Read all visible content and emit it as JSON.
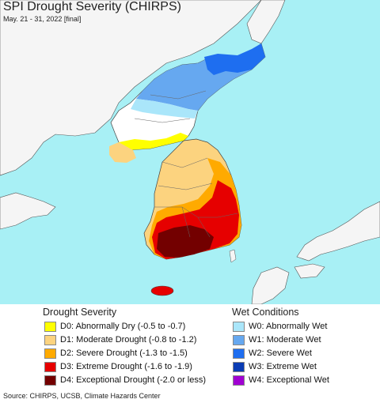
{
  "header": {
    "title": "SPI Drought Severity (CHIRPS)",
    "subtitle": "May. 21 - 31, 2022 [final]"
  },
  "colors": {
    "ocean": "#a8f0f5",
    "land_other": "#f5f5f5",
    "normal": "#ffffff",
    "border": "#444444"
  },
  "legend": {
    "drought": {
      "title": "Drought Severity",
      "items": [
        {
          "label": "D0: Abnormally Dry (-0.5 to -0.7)",
          "color": "#ffff00"
        },
        {
          "label": "D1: Moderate Drought (-0.8 to -1.2)",
          "color": "#fcd37f"
        },
        {
          "label": "D2: Severe Drought (-1.3 to -1.5)",
          "color": "#ffaa00"
        },
        {
          "label": "D3: Extreme Drought (-1.6 to -1.9)",
          "color": "#e60000"
        },
        {
          "label": "D4: Exceptional Drought (-2.0 or less)",
          "color": "#730000"
        }
      ]
    },
    "wet": {
      "title": "Wet Conditions",
      "items": [
        {
          "label": "W0: Abnormally Wet",
          "color": "#aae6fa"
        },
        {
          "label": "W1: Moderate Wet",
          "color": "#66a8f0"
        },
        {
          "label": "W2: Severe Wet",
          "color": "#1e6ef0"
        },
        {
          "label": "W3: Extreme Wet",
          "color": "#0a3cb4"
        },
        {
          "label": "W4: Exceptional Wet",
          "color": "#a000d2"
        }
      ]
    }
  },
  "footer": {
    "source": "Source: CHIRPS, UCSB, Climate Hazards Center"
  }
}
